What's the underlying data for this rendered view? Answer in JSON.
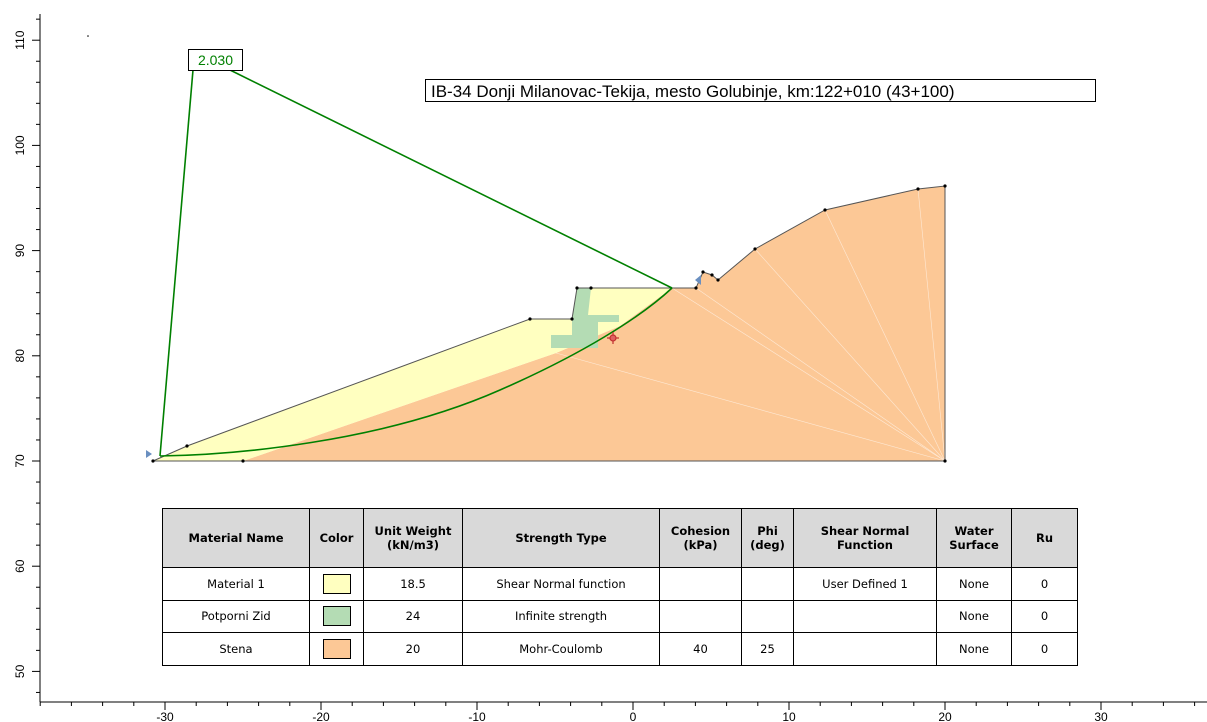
{
  "diagram": {
    "title": "IB-34 Donji Milanovac-Tekija, mesto Golubinje, km:122+010 (43+100)",
    "factor_of_safety": "2.030",
    "x_ticks": [
      "-30",
      "-20",
      "-10",
      "0",
      "10",
      "20",
      "30"
    ],
    "y_ticks": [
      "50",
      "60",
      "70",
      "80",
      "90",
      "100",
      "110"
    ],
    "colors": {
      "material_1": "#ffffc0",
      "potporni_zid": "#b4dcb4",
      "stena": "#fcc896",
      "slip_surface": "#008000"
    }
  },
  "table": {
    "headers": [
      "Material Name",
      "Color",
      "Unit Weight (kN/m3)",
      "Strength Type",
      "Cohesion (kPa)",
      "Phi (deg)",
      "Shear Normal Function",
      "Water Surface",
      "Ru"
    ],
    "rows": [
      {
        "name": "Material 1",
        "color": "#ffffc0",
        "unit_weight": "18.5",
        "strength_type": "Shear Normal function",
        "cohesion": "",
        "phi": "",
        "shear_normal": "User Defined 1",
        "water_surface": "None",
        "ru": "0"
      },
      {
        "name": "Potporni Zid",
        "color": "#b4dcb4",
        "unit_weight": "24",
        "strength_type": "Infinite strength",
        "cohesion": "",
        "phi": "",
        "shear_normal": "",
        "water_surface": "None",
        "ru": "0"
      },
      {
        "name": "Stena",
        "color": "#fcc896",
        "unit_weight": "20",
        "strength_type": "Mohr-Coulomb",
        "cohesion": "40",
        "phi": "25",
        "shear_normal": "",
        "water_surface": "None",
        "ru": "0"
      }
    ]
  }
}
